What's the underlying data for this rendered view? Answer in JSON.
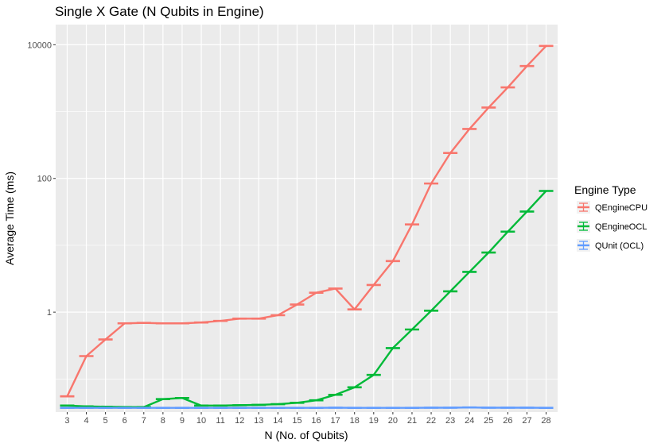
{
  "chart_data": {
    "type": "line",
    "title": "Single X Gate (N Qubits in Engine)",
    "xlabel": "N (No. of Qubits)",
    "ylabel": "Average Time (ms)",
    "y_scale": "log10",
    "ylim": [
      0.032,
      20000
    ],
    "y_ticks": [
      1,
      100,
      10000
    ],
    "y_tick_labels": [
      "1",
      "100",
      "10000"
    ],
    "x": [
      3,
      4,
      5,
      6,
      7,
      8,
      9,
      10,
      11,
      12,
      13,
      14,
      15,
      16,
      17,
      18,
      19,
      20,
      21,
      22,
      23,
      24,
      25,
      26,
      27,
      28
    ],
    "x_tick_labels": [
      "3",
      "4",
      "5",
      "6",
      "7",
      "8",
      "9",
      "10",
      "11",
      "12",
      "13",
      "14",
      "15",
      "16",
      "17",
      "18",
      "19",
      "20",
      "21",
      "22",
      "23",
      "24",
      "25",
      "26",
      "27",
      "28"
    ],
    "grid": true,
    "legend_title": "Engine Type",
    "legend_position": "right",
    "error_bars": true,
    "series": [
      {
        "name": "QEngineCPU",
        "color": "#F8766D",
        "values": [
          0.055,
          0.22,
          0.39,
          0.68,
          0.69,
          0.68,
          0.68,
          0.7,
          0.74,
          0.8,
          0.8,
          0.9,
          1.3,
          1.95,
          2.25,
          1.1,
          2.55,
          5.8,
          20.5,
          84,
          240,
          550,
          1150,
          2300,
          4800,
          9600
        ]
      },
      {
        "name": "QEngineOCL",
        "color": "#00BA38",
        "values": [
          0.04,
          0.039,
          0.0385,
          0.038,
          0.038,
          0.05,
          0.052,
          0.04,
          0.04,
          0.0405,
          0.041,
          0.042,
          0.044,
          0.048,
          0.058,
          0.075,
          0.115,
          0.29,
          0.55,
          1.05,
          2.05,
          4.0,
          7.8,
          16,
          32,
          65
        ]
      },
      {
        "name": "QUnit (OCL)",
        "color": "#619CFF",
        "values": [
          0.037,
          0.037,
          0.037,
          0.037,
          0.037,
          0.037,
          0.037,
          0.037,
          0.037,
          0.037,
          0.037,
          0.037,
          0.037,
          0.037,
          0.0372,
          0.037,
          0.037,
          0.037,
          0.037,
          0.0372,
          0.0372,
          0.0375,
          0.0372,
          0.0372,
          0.0372,
          0.037
        ]
      }
    ]
  }
}
